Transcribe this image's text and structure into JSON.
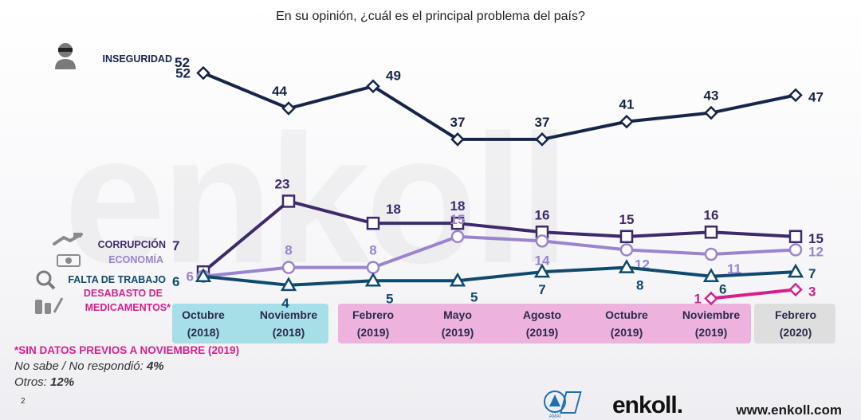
{
  "title": "En su opinión, ¿cuál es el principal problema del país?",
  "watermark": "enkoll",
  "chart_data": {
    "type": "line",
    "categories": [
      "Octubre (2018)",
      "Noviembre (2018)",
      "Febrero (2019)",
      "Mayo (2019)",
      "Agosto (2019)",
      "Octubre (2019)",
      "Noviembre (2019)",
      "Febrero (2020)"
    ],
    "x_labels": [
      {
        "line1": "Octubre",
        "line2": "(2018)"
      },
      {
        "line1": "Noviembre",
        "line2": "(2018)"
      },
      {
        "line1": "Febrero",
        "line2": "(2019)"
      },
      {
        "line1": "Mayo",
        "line2": "(2019)"
      },
      {
        "line1": "Agosto",
        "line2": "(2019)"
      },
      {
        "line1": "Octubre",
        "line2": "(2019)"
      },
      {
        "line1": "Noviembre",
        "line2": "(2019)"
      },
      {
        "line1": "Febrero",
        "line2": "(2020)"
      }
    ],
    "ylim": [
      0,
      55
    ],
    "series": [
      {
        "name": "INSEGURIDAD",
        "color": "#16254a",
        "marker": "diamond",
        "values": [
          52,
          44,
          49,
          37,
          37,
          41,
          43,
          47
        ]
      },
      {
        "name": "CORRUPCIÓN",
        "color": "#3e2a6b",
        "marker": "square",
        "values": [
          7,
          23,
          18,
          18,
          16,
          15,
          16,
          15
        ]
      },
      {
        "name": "ECONOMÍA",
        "color": "#9a84d0",
        "marker": "circle",
        "values": [
          6,
          8,
          8,
          15,
          14,
          12,
          11,
          12
        ]
      },
      {
        "name": "FALTA DE TRABAJO",
        "color": "#0f4a6e",
        "marker": "triangle",
        "values": [
          6,
          4,
          5,
          5,
          7,
          8,
          6,
          7
        ]
      },
      {
        "name": "DESABASTO DE MEDICAMENTOS*",
        "color": "#d61f8c",
        "marker": "diamond",
        "values": [
          null,
          null,
          null,
          null,
          null,
          null,
          1,
          3
        ]
      }
    ],
    "period_groups": [
      {
        "label": "2018",
        "color": "#a6dfe8"
      },
      {
        "label": "2019",
        "color": "#eeb2de"
      },
      {
        "label": "2020",
        "color": "#dedede"
      }
    ]
  },
  "notes": {
    "star_note": "*SIN DATOS PREVIOS A NOVIEMBRE (2019)",
    "no_sabe_label": "No sabe / No respondió: ",
    "no_sabe_value": "4%",
    "otros_label": "Otros: ",
    "otros_value": "12%"
  },
  "page_number": "2",
  "footer": {
    "brand": "enkoll.",
    "website": "www.enkoll.com",
    "amai_label": "AMAI"
  }
}
